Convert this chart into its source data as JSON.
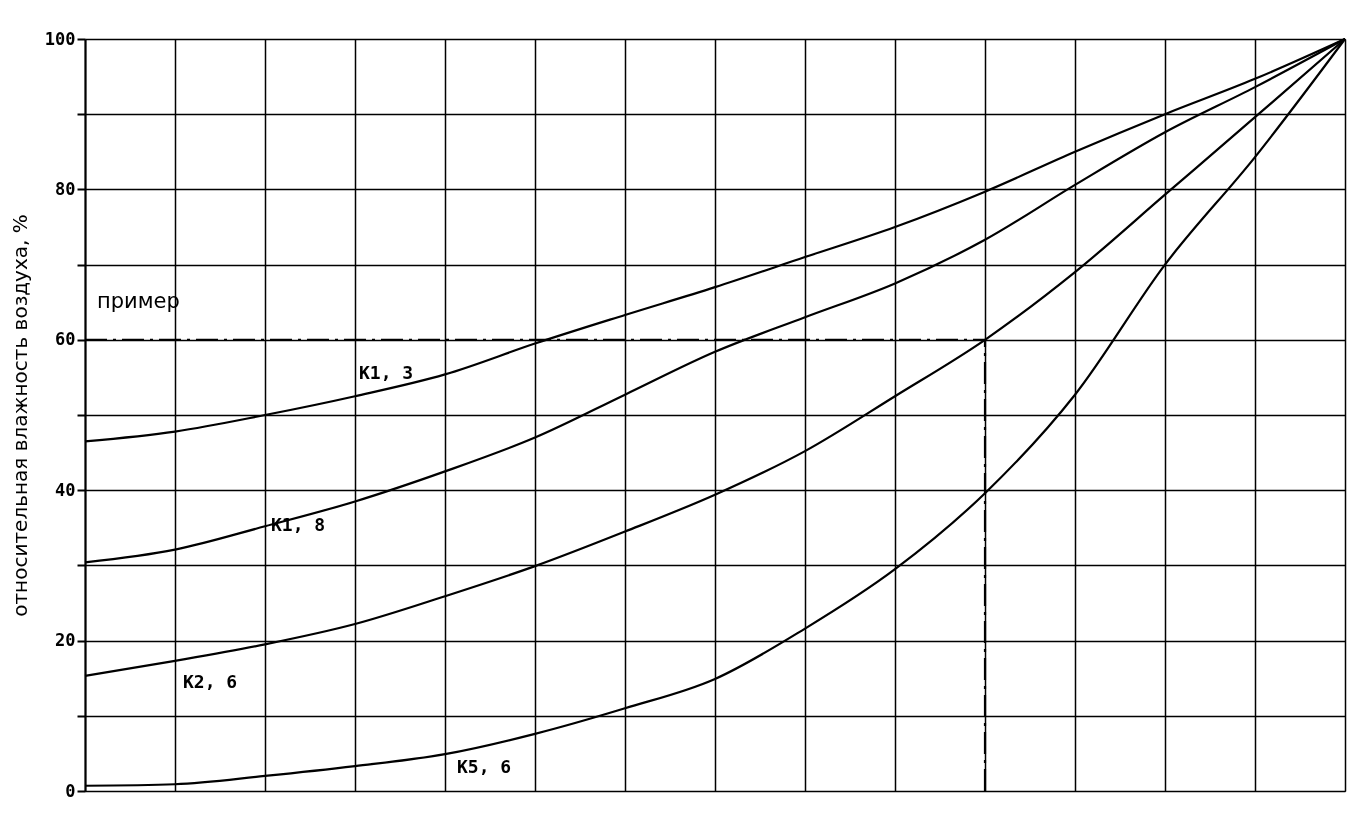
{
  "chart_data": {
    "type": "line",
    "ylabel": "относительная влажность воздуха, %",
    "categories": [
      null,
      null,
      null,
      null,
      null,
      null,
      null,
      null,
      null,
      null,
      null,
      null,
      null,
      null,
      null
    ],
    "ylim": [
      0,
      100
    ],
    "yticks": [
      0,
      {
        "value": 10,
        "label": null
      },
      20,
      {
        "value": 30,
        "label": null
      },
      40,
      {
        "value": 50,
        "label": null
      },
      60,
      {
        "value": 70,
        "label": null
      },
      80,
      {
        "value": 90,
        "label": null
      },
      100
    ],
    "tick_labels": "y",
    "grid": true,
    "series": [
      {
        "name": "K1, 3",
        "color": "#000000",
        "values": [
          46.5,
          47.8,
          50,
          52.5,
          55.4,
          59.5,
          63.3,
          67,
          71,
          75,
          79.7,
          85,
          90,
          94.7,
          100
        ]
      },
      {
        "name": "K1, 8",
        "color": "#000000",
        "values": [
          30.4,
          32.1,
          35.2,
          38.5,
          42.5,
          47,
          52.7,
          58.4,
          63,
          67.5,
          73.3,
          80.6,
          87.6,
          93.6,
          100
        ]
      },
      {
        "name": "K2, 6",
        "color": "#000000",
        "values": [
          15.3,
          17.3,
          19.5,
          22.2,
          25.9,
          29.9,
          34.5,
          39.4,
          45.2,
          52.5,
          60,
          69,
          79.3,
          89.6,
          100
        ]
      },
      {
        "name": "K5, 6",
        "color": "#000000",
        "values": [
          0.7,
          0.9,
          2,
          3.3,
          4.9,
          7.6,
          11,
          14.9,
          21.6,
          29.5,
          39.6,
          52.7,
          70,
          84.3,
          100
        ]
      }
    ],
    "ref_lines": [
      {
        "axis": "y",
        "value": 60,
        "label": "пример",
        "line_style": "dashed",
        "color": "#000000"
      }
    ]
  }
}
